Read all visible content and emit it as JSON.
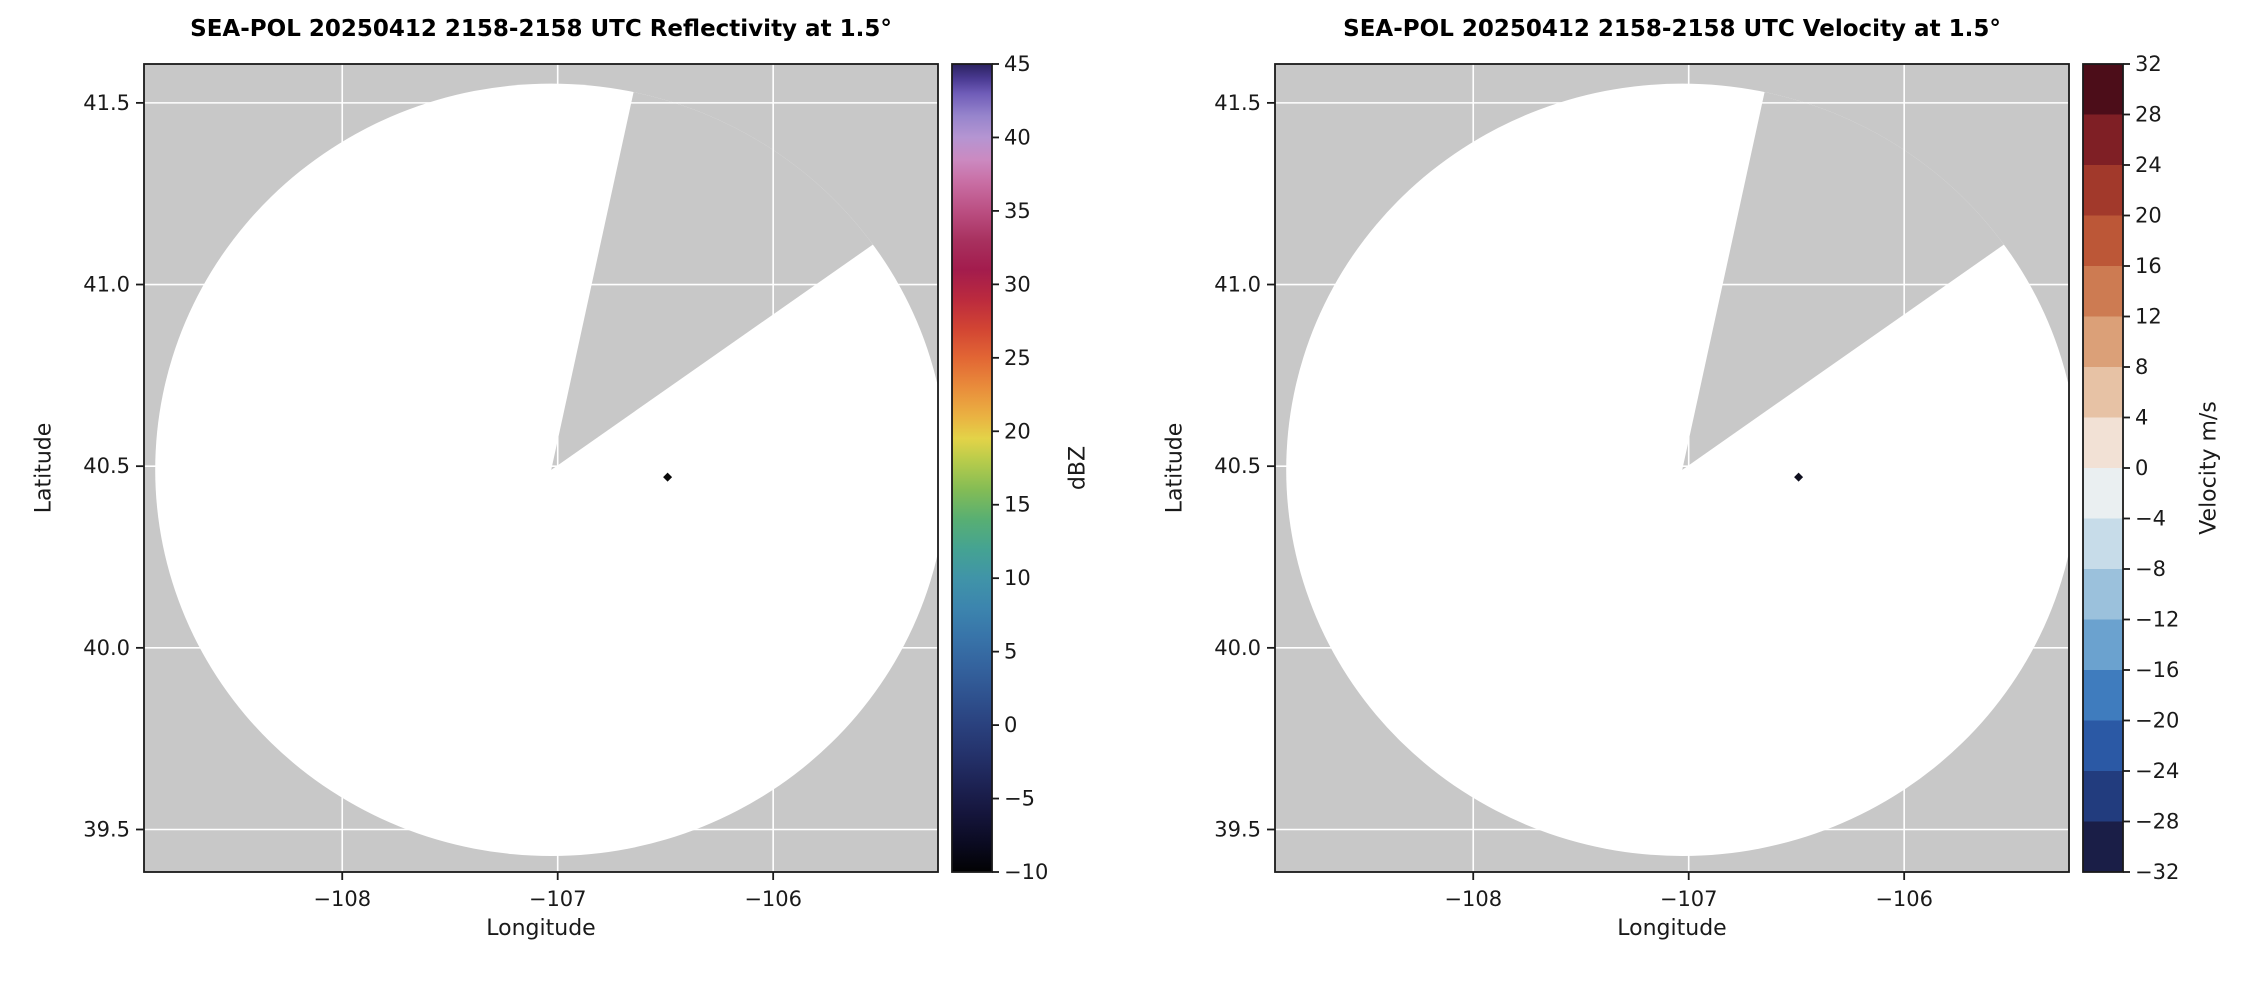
{
  "figure": {
    "description": "Two-panel SEA-POL radar PPI figure: reflectivity and radial velocity at 1.5 degree elevation",
    "background_color": "#ffffff"
  },
  "chart_data": [
    {
      "type": "heatmap",
      "subtype": "radar-ppi",
      "title": "SEA-POL 20250412 2158-2158 UTC Reflectivity at 1.5°",
      "xlabel": "Longitude",
      "ylabel": "Latitude",
      "xlim": [
        -108.92,
        -105.235
      ],
      "ylim": [
        39.383,
        41.607
      ],
      "xticks": [
        -108,
        -107,
        -106
      ],
      "xtick_labels": [
        "−108",
        "−107",
        "−106"
      ],
      "yticks": [
        39.5,
        40.0,
        40.5,
        41.0,
        41.5
      ],
      "ytick_labels": [
        "39.5",
        "40.0",
        "40.5",
        "41.0",
        "41.5"
      ],
      "grid": true,
      "legend": "none",
      "colors": {
        "no_data": "#c8c8c8",
        "scan_area": "#ffffff",
        "grid": "#ffffff"
      },
      "radar": {
        "center": {
          "lon": -107.03,
          "lat": 40.49
        },
        "radius_lon_deg": 1.838,
        "radius_lat_deg": 1.063,
        "blanked_sector": {
          "from_az": 12.3,
          "to_az": 55.0
        }
      },
      "echo_points": [
        {
          "lon": -106.49,
          "lat": 40.47,
          "color": "#0a0a0a",
          "note": "single small dark echo near center of scan"
        }
      ],
      "colorbar": {
        "label": "dBZ",
        "min": -10,
        "max": 45,
        "type": "continuous",
        "ticks": [
          45,
          40,
          35,
          30,
          25,
          20,
          15,
          10,
          5,
          0,
          -5,
          -10
        ],
        "tick_labels": [
          "45",
          "40",
          "35",
          "30",
          "25",
          "20",
          "15",
          "10",
          "5",
          "0",
          "−5",
          "−10"
        ],
        "stops": [
          {
            "v": -10,
            "c": "#020203"
          },
          {
            "v": -8,
            "c": "#0b0b22"
          },
          {
            "v": -6,
            "c": "#15153c"
          },
          {
            "v": -4,
            "c": "#1d2354"
          },
          {
            "v": -2,
            "c": "#24326b"
          },
          {
            "v": 0,
            "c": "#2a417e"
          },
          {
            "v": 2,
            "c": "#2f528f"
          },
          {
            "v": 4,
            "c": "#34639e"
          },
          {
            "v": 6,
            "c": "#3874a9"
          },
          {
            "v": 8,
            "c": "#3c85ae"
          },
          {
            "v": 10,
            "c": "#4094a8"
          },
          {
            "v": 12,
            "c": "#45a392"
          },
          {
            "v": 14,
            "c": "#58af73"
          },
          {
            "v": 16,
            "c": "#83bc55"
          },
          {
            "v": 18,
            "c": "#b8cc4b"
          },
          {
            "v": 19.5,
            "c": "#e3d348"
          },
          {
            "v": 21,
            "c": "#eab242"
          },
          {
            "v": 23,
            "c": "#e98c3b"
          },
          {
            "v": 25,
            "c": "#e26634"
          },
          {
            "v": 27,
            "c": "#d24433"
          },
          {
            "v": 29,
            "c": "#bb2a3e"
          },
          {
            "v": 31,
            "c": "#a31c4d"
          },
          {
            "v": 33,
            "c": "#a8315f"
          },
          {
            "v": 35,
            "c": "#bb4f82"
          },
          {
            "v": 37,
            "c": "#c96fa5"
          },
          {
            "v": 38.5,
            "c": "#cb8ac1"
          },
          {
            "v": 40,
            "c": "#b595d2"
          },
          {
            "v": 41.5,
            "c": "#9684cc"
          },
          {
            "v": 43,
            "c": "#6f5cb8"
          },
          {
            "v": 44,
            "c": "#4a3a92"
          },
          {
            "v": 45,
            "c": "#2b2260"
          }
        ]
      }
    },
    {
      "type": "heatmap",
      "subtype": "radar-ppi",
      "title": "SEA-POL 20250412 2158-2158 UTC Velocity at 1.5°",
      "xlabel": "Longitude",
      "ylabel": "Latitude",
      "xlim": [
        -108.92,
        -105.235
      ],
      "ylim": [
        39.383,
        41.607
      ],
      "xticks": [
        -108,
        -107,
        -106
      ],
      "xtick_labels": [
        "−108",
        "−107",
        "−106"
      ],
      "yticks": [
        39.5,
        40.0,
        40.5,
        41.0,
        41.5
      ],
      "ytick_labels": [
        "39.5",
        "40.0",
        "40.5",
        "41.0",
        "41.5"
      ],
      "grid": true,
      "legend": "none",
      "colors": {
        "no_data": "#c8c8c8",
        "scan_area": "#ffffff",
        "grid": "#ffffff"
      },
      "radar": {
        "center": {
          "lon": -107.03,
          "lat": 40.49
        },
        "radius_lon_deg": 1.838,
        "radius_lat_deg": 1.063,
        "blanked_sector": {
          "from_az": 12.3,
          "to_az": 55.0
        }
      },
      "echo_points": [
        {
          "lon": -106.49,
          "lat": 40.47,
          "color": "#10101f",
          "note": "single small dark echo near center of scan"
        }
      ],
      "colorbar": {
        "label": "Velocity m/s",
        "min": -32,
        "max": 32,
        "type": "discrete",
        "ticks": [
          32,
          28,
          24,
          20,
          16,
          12,
          8,
          4,
          0,
          -4,
          -8,
          -12,
          -16,
          -20,
          -24,
          -28,
          -32
        ],
        "tick_labels": [
          "32",
          "28",
          "24",
          "20",
          "16",
          "12",
          "8",
          "4",
          "0",
          "−4",
          "−8",
          "−12",
          "−16",
          "−20",
          "−24",
          "−28",
          "−32"
        ],
        "segments": [
          {
            "from": -32,
            "to": -28,
            "c": "#1a1e47"
          },
          {
            "from": -28,
            "to": -24,
            "c": "#223c7e"
          },
          {
            "from": -24,
            "to": -20,
            "c": "#2b59a5"
          },
          {
            "from": -20,
            "to": -16,
            "c": "#3f7cbe"
          },
          {
            "from": -16,
            "to": -12,
            "c": "#6ba2cf"
          },
          {
            "from": -12,
            "to": -8,
            "c": "#9bc1dc"
          },
          {
            "from": -8,
            "to": -4,
            "c": "#c7dce9"
          },
          {
            "from": -4,
            "to": 0,
            "c": "#eaeff1"
          },
          {
            "from": 0,
            "to": 4,
            "c": "#f2e1d5"
          },
          {
            "from": 4,
            "to": 8,
            "c": "#e7c2a5"
          },
          {
            "from": 8,
            "to": 12,
            "c": "#dba078"
          },
          {
            "from": 12,
            "to": 16,
            "c": "#cd7b52"
          },
          {
            "from": 16,
            "to": 20,
            "c": "#bc5737"
          },
          {
            "from": 20,
            "to": 24,
            "c": "#a2392b"
          },
          {
            "from": 24,
            "to": 28,
            "c": "#7f1f25"
          },
          {
            "from": 28,
            "to": 32,
            "c": "#4c0d19"
          }
        ]
      }
    }
  ]
}
